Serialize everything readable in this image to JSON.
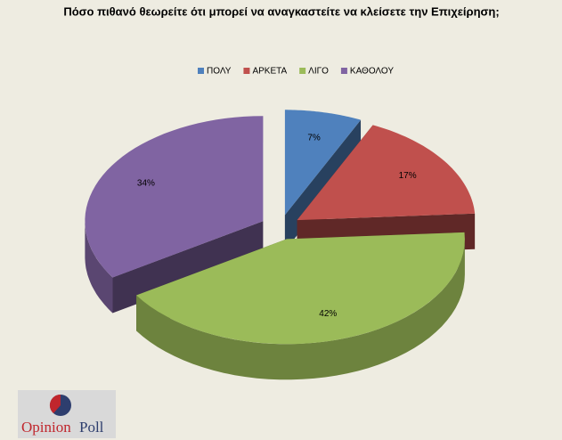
{
  "chart_data": {
    "type": "pie3d",
    "title": "Πόσο πιθανό θεωρείτε ότι μπορεί να αναγκαστείτε να κλείσετε την Επιχείρηση;",
    "series": [
      {
        "name": "ΠΟΛΥ",
        "color": "#4f81bd",
        "values": [
          7
        ],
        "value_labels": [
          "7%"
        ]
      },
      {
        "name": "ΑΡΚΕΤΑ",
        "color": "#c0504d",
        "values": [
          17
        ],
        "value_labels": [
          "17%"
        ]
      },
      {
        "name": "ΛΙΓΟ",
        "color": "#9bbb59",
        "values": [
          42
        ],
        "value_labels": [
          "42%"
        ]
      },
      {
        "name": "ΚΑΘΟΛΟΥ",
        "color": "#8064a2",
        "values": [
          34
        ],
        "value_labels": [
          "34%"
        ]
      }
    ],
    "legend": "top"
  },
  "logo": {
    "first": "Opinion",
    "second": "Poll"
  }
}
